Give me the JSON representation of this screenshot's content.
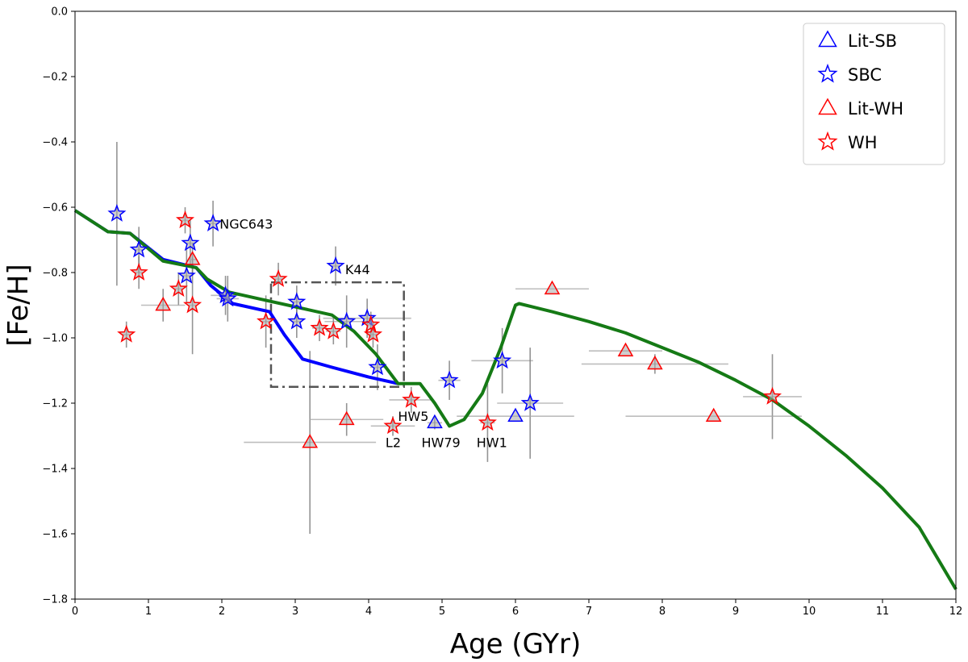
{
  "chart_data": {
    "type": "scatter",
    "xlabel": "Age (GYr)",
    "ylabel": "[Fe/H]",
    "xlim": [
      0,
      12
    ],
    "ylim": [
      -1.8,
      0.0
    ],
    "xticks": [
      0,
      1,
      2,
      3,
      4,
      5,
      6,
      7,
      8,
      9,
      10,
      11,
      12
    ],
    "yticks": [
      0.0,
      -0.2,
      -0.4,
      -0.6,
      -0.8,
      -1.0,
      -1.2,
      -1.4,
      -1.6,
      -1.8
    ],
    "ytick_labels": [
      "0.0",
      "−0.2",
      "−0.4",
      "−0.6",
      "−0.8",
      "−1.0",
      "−1.2",
      "−1.4",
      "−1.6",
      "−1.8"
    ],
    "legend": {
      "position": "top-right",
      "entries": [
        {
          "label": "Lit-SB",
          "marker": "triangle",
          "color": "#0000ff"
        },
        {
          "label": "SBC",
          "marker": "star",
          "color": "#0000ff"
        },
        {
          "label": "Lit-WH",
          "marker": "triangle",
          "color": "#ff0000"
        },
        {
          "label": "WH",
          "marker": "star",
          "color": "#ff0000"
        }
      ]
    },
    "lines": [
      {
        "name": "blue model",
        "color": "#0000ff",
        "points": [
          [
            0,
            -0.61
          ],
          [
            0.45,
            -0.675
          ],
          [
            0.75,
            -0.68
          ],
          [
            1.2,
            -0.76
          ],
          [
            1.65,
            -0.785
          ],
          [
            1.85,
            -0.84
          ],
          [
            2.15,
            -0.895
          ],
          [
            2.65,
            -0.92
          ],
          [
            2.85,
            -0.99
          ],
          [
            3.1,
            -1.065
          ],
          [
            3.5,
            -1.09
          ],
          [
            4.0,
            -1.12
          ],
          [
            4.4,
            -1.14
          ]
        ]
      },
      {
        "name": "green model",
        "color": "#157a15",
        "points": [
          [
            0,
            -0.61
          ],
          [
            0.45,
            -0.675
          ],
          [
            0.75,
            -0.68
          ],
          [
            1.2,
            -0.765
          ],
          [
            1.65,
            -0.785
          ],
          [
            1.8,
            -0.82
          ],
          [
            2.1,
            -0.86
          ],
          [
            2.5,
            -0.88
          ],
          [
            3.0,
            -0.905
          ],
          [
            3.5,
            -0.93
          ],
          [
            3.8,
            -0.98
          ],
          [
            4.1,
            -1.05
          ],
          [
            4.4,
            -1.14
          ],
          [
            4.7,
            -1.14
          ],
          [
            4.9,
            -1.2
          ],
          [
            5.1,
            -1.27
          ],
          [
            5.3,
            -1.25
          ],
          [
            5.55,
            -1.17
          ],
          [
            5.8,
            -1.03
          ],
          [
            6.0,
            -0.9
          ],
          [
            6.05,
            -0.895
          ],
          [
            6.5,
            -0.92
          ],
          [
            7,
            -0.95
          ],
          [
            7.5,
            -0.985
          ],
          [
            8,
            -1.03
          ],
          [
            8.5,
            -1.075
          ],
          [
            9,
            -1.13
          ],
          [
            9.5,
            -1.19
          ],
          [
            10,
            -1.27
          ],
          [
            10.5,
            -1.36
          ],
          [
            11,
            -1.46
          ],
          [
            11.5,
            -1.58
          ],
          [
            12,
            -1.77
          ]
        ]
      }
    ],
    "box": {
      "x": [
        2.67,
        4.48
      ],
      "y": [
        -1.15,
        -0.83
      ],
      "style": "dash-dot"
    },
    "series": [
      {
        "name": "SBC",
        "marker": "star",
        "color": "#0000ff",
        "points": [
          {
            "x": 0.57,
            "y": -0.62,
            "xerr": 0.0,
            "yerr": 0.22
          },
          {
            "x": 0.87,
            "y": -0.73,
            "xerr": 0.05,
            "yerr": 0.07
          },
          {
            "x": 1.52,
            "y": -0.81,
            "xerr": 0.05,
            "yerr": 0.08
          },
          {
            "x": 1.57,
            "y": -0.71,
            "xerr": 0.05,
            "yerr": 0.07
          },
          {
            "x": 1.88,
            "y": -0.65,
            "xerr": 0.08,
            "yerr": 0.07
          },
          {
            "x": 2.05,
            "y": -0.87,
            "xerr": 0.2,
            "yerr": 0.06
          },
          {
            "x": 2.08,
            "y": -0.88,
            "xerr": 0.15,
            "yerr": 0.07
          },
          {
            "x": 3.02,
            "y": -0.89,
            "xerr": 0.05,
            "yerr": 0.05
          },
          {
            "x": 3.02,
            "y": -0.95,
            "xerr": 0.05,
            "yerr": 0.05
          },
          {
            "x": 3.55,
            "y": -0.78,
            "xerr": 0.07,
            "yerr": 0.06
          },
          {
            "x": 3.7,
            "y": -0.95,
            "xerr": 0.3,
            "yerr": 0.08
          },
          {
            "x": 3.98,
            "y": -0.94,
            "xerr": 0.6,
            "yerr": 0.06
          },
          {
            "x": 4.12,
            "y": -1.09,
            "xerr": 0.1,
            "yerr": 0.07
          },
          {
            "x": 5.1,
            "y": -1.13,
            "xerr": 0.15,
            "yerr": 0.06
          },
          {
            "x": 5.82,
            "y": -1.07,
            "xerr": 0.42,
            "yerr": 0.1
          },
          {
            "x": 6.2,
            "y": -1.2,
            "xerr": 0.45,
            "yerr": 0.17
          }
        ]
      },
      {
        "name": "WH",
        "marker": "star",
        "color": "#ff0000",
        "points": [
          {
            "x": 0.7,
            "y": -0.99,
            "xerr": 0.05,
            "yerr": 0.04
          },
          {
            "x": 0.87,
            "y": -0.8,
            "xerr": 0.05,
            "yerr": 0.05
          },
          {
            "x": 1.41,
            "y": -0.85,
            "xerr": 0.05,
            "yerr": 0.05
          },
          {
            "x": 1.5,
            "y": -0.64,
            "xerr": 0.04,
            "yerr": 0.04
          },
          {
            "x": 1.6,
            "y": -0.9,
            "xerr": 0.05,
            "yerr": 0.15
          },
          {
            "x": 2.6,
            "y": -0.95,
            "xerr": 0.08,
            "yerr": 0.08
          },
          {
            "x": 2.77,
            "y": -0.82,
            "xerr": 0.05,
            "yerr": 0.05
          },
          {
            "x": 3.33,
            "y": -0.97,
            "xerr": 0.1,
            "yerr": 0.04
          },
          {
            "x": 3.52,
            "y": -0.98,
            "xerr": 0.1,
            "yerr": 0.04
          },
          {
            "x": 4.03,
            "y": -0.96,
            "xerr": 0.05,
            "yerr": 0.04
          },
          {
            "x": 4.06,
            "y": -0.99,
            "xerr": 0.05,
            "yerr": 0.04
          },
          {
            "x": 4.33,
            "y": -1.27,
            "xerr": 0.3,
            "yerr": 0.03
          },
          {
            "x": 4.58,
            "y": -1.19,
            "xerr": 0.3,
            "yerr": 0.04
          },
          {
            "x": 5.62,
            "y": -1.26,
            "xerr": 0.1,
            "yerr": 0.12
          },
          {
            "x": 9.5,
            "y": -1.18,
            "xerr": 0.4,
            "yerr": 0.13
          }
        ]
      },
      {
        "name": "Lit-SB",
        "marker": "triangle",
        "color": "#0000ff",
        "points": [
          {
            "x": 4.9,
            "y": -1.26,
            "xerr": 0.1,
            "yerr": 0.02
          },
          {
            "x": 6.0,
            "y": -1.24,
            "xerr": 0.8,
            "yerr": 0.0
          }
        ]
      },
      {
        "name": "Lit-WH",
        "marker": "triangle",
        "color": "#ff0000",
        "points": [
          {
            "x": 1.2,
            "y": -0.9,
            "xerr": 0.3,
            "yerr": 0.05
          },
          {
            "x": 1.6,
            "y": -0.76,
            "xerr": 0.05,
            "yerr": 0.05
          },
          {
            "x": 3.2,
            "y": -1.32,
            "xerr": 0.9,
            "yerr": 0.28
          },
          {
            "x": 3.7,
            "y": -1.25,
            "xerr": 0.5,
            "yerr": 0.05
          },
          {
            "x": 6.5,
            "y": -0.85,
            "xerr": 0.5,
            "yerr": 0.0
          },
          {
            "x": 7.5,
            "y": -1.04,
            "xerr": 0.5,
            "yerr": 0.0
          },
          {
            "x": 7.9,
            "y": -1.08,
            "xerr": 1.0,
            "yerr": 0.03
          },
          {
            "x": 8.7,
            "y": -1.24,
            "xerr": 1.2,
            "yerr": 0.0
          }
        ]
      }
    ],
    "annotations": [
      {
        "text": "NGC643",
        "x": 1.97,
        "y": -0.65
      },
      {
        "text": "K44",
        "x": 3.68,
        "y": -0.79
      },
      {
        "text": "HW5",
        "x": 4.4,
        "y": -1.24
      },
      {
        "text": "L2",
        "x": 4.23,
        "y": -1.32
      },
      {
        "text": "HW79",
        "x": 4.72,
        "y": -1.32
      },
      {
        "text": "HW1",
        "x": 5.47,
        "y": -1.32
      }
    ]
  }
}
